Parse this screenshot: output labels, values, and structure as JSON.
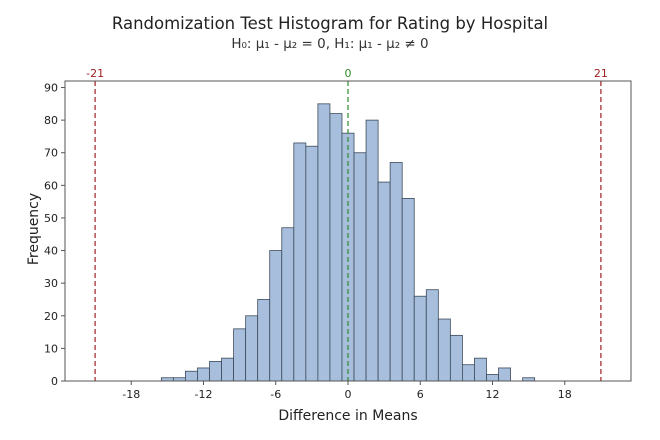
{
  "chart_data": {
    "type": "bar",
    "title": "Randomization Test Histogram for Rating by Hospital",
    "subtitle": "H₀: μ₁ - μ₂ = 0, H₁: μ₁ - μ₂ ≠ 0",
    "xlabel": "Difference in Means",
    "ylabel": "Frequency",
    "xlim": [
      -23.5,
      23.5
    ],
    "ylim": [
      0,
      92
    ],
    "bin_width": 1,
    "x_ticks": [
      -18,
      -12,
      -6,
      0,
      6,
      12,
      18
    ],
    "y_ticks": [
      0,
      10,
      20,
      30,
      40,
      50,
      60,
      70,
      80,
      90
    ],
    "bins": [
      {
        "center": -15,
        "count": 1
      },
      {
        "center": -14,
        "count": 1
      },
      {
        "center": -13,
        "count": 3
      },
      {
        "center": -12,
        "count": 4
      },
      {
        "center": -11,
        "count": 6
      },
      {
        "center": -10,
        "count": 7
      },
      {
        "center": -9,
        "count": 16
      },
      {
        "center": -8,
        "count": 20
      },
      {
        "center": -7,
        "count": 25
      },
      {
        "center": -6,
        "count": 40
      },
      {
        "center": -5,
        "count": 47
      },
      {
        "center": -4,
        "count": 73
      },
      {
        "center": -3,
        "count": 72
      },
      {
        "center": -2,
        "count": 85
      },
      {
        "center": -1,
        "count": 82
      },
      {
        "center": 0,
        "count": 76
      },
      {
        "center": 1,
        "count": 70
      },
      {
        "center": 2,
        "count": 80
      },
      {
        "center": 3,
        "count": 61
      },
      {
        "center": 4,
        "count": 67
      },
      {
        "center": 5,
        "count": 56
      },
      {
        "center": 6,
        "count": 26
      },
      {
        "center": 7,
        "count": 28
      },
      {
        "center": 8,
        "count": 19
      },
      {
        "center": 9,
        "count": 14
      },
      {
        "center": 10,
        "count": 5
      },
      {
        "center": 11,
        "count": 7
      },
      {
        "center": 12,
        "count": 2
      },
      {
        "center": 13,
        "count": 4
      },
      {
        "center": 14,
        "count": 0
      },
      {
        "center": 15,
        "count": 1
      }
    ],
    "reference_lines": [
      {
        "x": -21,
        "label": "-21",
        "color": "#a02020",
        "style": "dashed"
      },
      {
        "x": 0,
        "label": "0",
        "color": "#2e8b2e",
        "style": "dashed"
      },
      {
        "x": 21,
        "label": "21",
        "color": "#a02020",
        "style": "dashed"
      }
    ],
    "bar_fill": "#a7bfdc",
    "bar_stroke": "#3c4a5a",
    "grid": false
  }
}
